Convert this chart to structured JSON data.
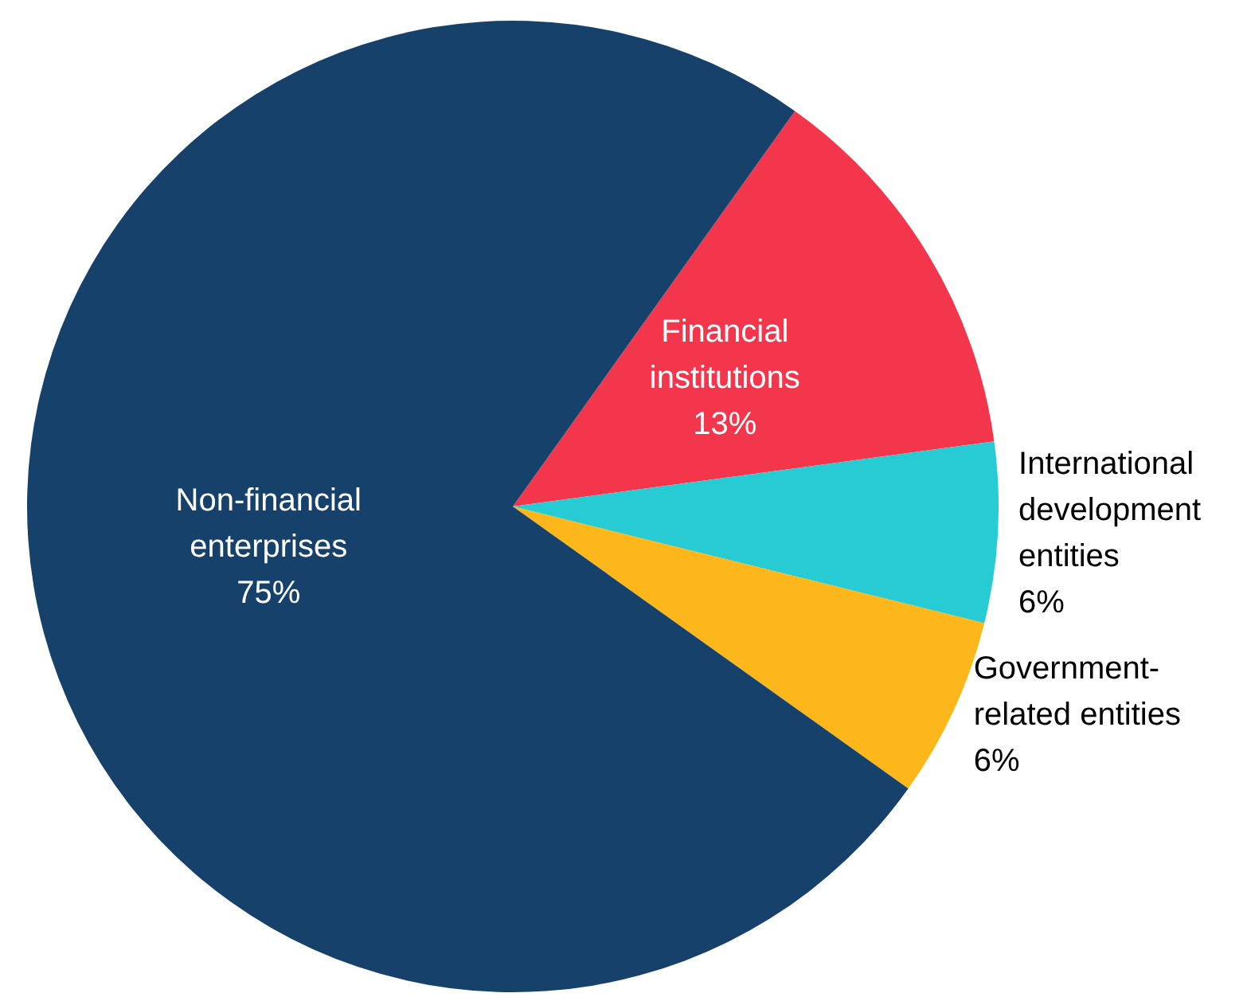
{
  "chart_data": {
    "type": "pie",
    "categories": [
      "Financial institutions",
      "International development entities",
      "Government-related entities",
      "Non-financial enterprises"
    ],
    "values": [
      13,
      6,
      6,
      75
    ],
    "colors": [
      "#f4364c",
      "#27cbd3",
      "#fdb71a",
      "#16416b"
    ],
    "value_labels": [
      "13%",
      "6%",
      "6%",
      "75%"
    ]
  }
}
